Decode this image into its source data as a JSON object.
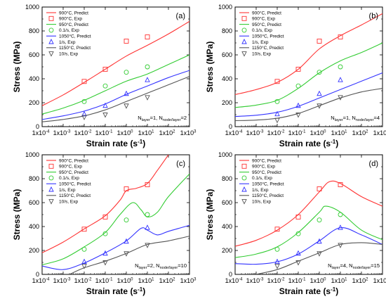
{
  "colors": {
    "900": "#ff3333",
    "950": "#33cc33",
    "1050": "#3333ff",
    "1150": "#555555"
  },
  "chart_data": [
    {
      "type": "line",
      "panel_label": "(a)",
      "annotation": {
        "N1": "layer",
        "v1": "=1, N",
        "N2": "node/layer",
        "v2": "=2"
      },
      "xlabel": "Strain rate (s",
      "xlabel_sup": "-1",
      "xlabel_end": ")",
      "ylabel": "Stress (MPa)",
      "xscale": "log",
      "xlim": [
        0.0001,
        1000
      ],
      "ylim": [
        0,
        1000
      ],
      "yticks": [
        0,
        200,
        400,
        600,
        800,
        1000
      ],
      "xtick_labels": [
        "-4",
        "-3",
        "-2",
        "-1",
        "0",
        "1",
        "2",
        "3"
      ],
      "legend": [
        "900°C, Predict",
        "900°C, Exp",
        "950°C, Predict",
        "0.1/s, Exp",
        "1050°C, Predict",
        "1/s, Exp",
        "1150°C, Predict",
        "10/s, Exp"
      ],
      "series": [
        {
          "name": "900°C, Predict",
          "color_key": "900",
          "x": [
            0.0001,
            0.001,
            0.01,
            0.1,
            1,
            10,
            100,
            1000
          ],
          "y": [
            175,
            265,
            370,
            480,
            590,
            680,
            775,
            880
          ]
        },
        {
          "name": "950°C, Predict",
          "color_key": "950",
          "x": [
            0.0001,
            0.001,
            0.01,
            0.1,
            1,
            10,
            100,
            1000
          ],
          "y": [
            105,
            155,
            220,
            300,
            380,
            440,
            520,
            600
          ]
        },
        {
          "name": "1050°C, Predict",
          "color_key": "1050",
          "x": [
            0.0001,
            0.001,
            0.01,
            0.1,
            1,
            10,
            100,
            1000
          ],
          "y": [
            60,
            90,
            130,
            190,
            270,
            340,
            410,
            470
          ]
        },
        {
          "name": "1150°C, Predict",
          "color_key": "1150",
          "x": [
            0.0001,
            0.001,
            0.01,
            0.1,
            1,
            10,
            100,
            1000
          ],
          "y": [
            40,
            60,
            90,
            140,
            210,
            280,
            350,
            420
          ]
        }
      ],
      "exp": [
        {
          "name": "900°C, Exp",
          "color_key": "900",
          "marker": "square",
          "x": [
            0.01,
            0.1,
            1,
            10
          ],
          "y": [
            378,
            480,
            715,
            750
          ]
        },
        {
          "name": "0.1/s, Exp",
          "color_key": "950",
          "marker": "circle",
          "x": [
            0.01,
            0.1,
            1,
            10
          ],
          "y": [
            210,
            340,
            455,
            500
          ]
        },
        {
          "name": "1/s, Exp",
          "color_key": "1050",
          "marker": "triangle-up",
          "x": [
            0.01,
            0.1,
            1,
            10
          ],
          "y": [
            105,
            175,
            275,
            390
          ]
        },
        {
          "name": "10/s, Exp",
          "color_key": "1150",
          "marker": "triangle-down",
          "x": [
            0.01,
            0.1,
            1,
            10
          ],
          "y": [
            80,
            100,
            175,
            245
          ]
        }
      ]
    },
    {
      "type": "line",
      "panel_label": "(b)",
      "annotation": {
        "N1": "layer",
        "v1": "=1, N",
        "N2": "node/layer",
        "v2": "=4"
      },
      "xlabel": "Strain rate (s",
      "xlabel_sup": "-1",
      "xlabel_end": ")",
      "ylabel": "Stress (MPa)",
      "xscale": "log",
      "xlim": [
        0.0001,
        1000
      ],
      "ylim": [
        0,
        1000
      ],
      "yticks": [
        0,
        200,
        400,
        600,
        800,
        1000
      ],
      "xtick_labels": [
        "-4",
        "-3",
        "-2",
        "-1",
        "0",
        "1",
        "2",
        "3"
      ],
      "legend": [
        "900°C, Predict",
        "900°C, Exp",
        "950°C, Predict",
        "0.1/s, Exp",
        "1050°C, Predict",
        "1/s, Exp",
        "1150°C, Predict",
        "10/s, Exp"
      ],
      "series": [
        {
          "name": "900°C, Predict",
          "color_key": "900",
          "x": [
            0.0001,
            0.001,
            0.01,
            0.1,
            1,
            10,
            100,
            1000
          ],
          "y": [
            268,
            310,
            370,
            480,
            650,
            760,
            850,
            945
          ]
        },
        {
          "name": "950°C, Predict",
          "color_key": "950",
          "x": [
            0.0001,
            0.001,
            0.01,
            0.1,
            1,
            10,
            100,
            1000
          ],
          "y": [
            160,
            180,
            220,
            320,
            450,
            550,
            620,
            700
          ]
        },
        {
          "name": "1050°C, Predict",
          "color_key": "1050",
          "x": [
            0.0001,
            0.001,
            0.01,
            0.1,
            1,
            10,
            100,
            1000
          ],
          "y": [
            85,
            95,
            120,
            170,
            240,
            310,
            380,
            450
          ]
        },
        {
          "name": "1150°C, Predict",
          "color_key": "1150",
          "x": [
            0.0001,
            0.001,
            0.01,
            0.1,
            1,
            10,
            100,
            1000
          ],
          "y": [
            50,
            55,
            70,
            110,
            175,
            240,
            290,
            320
          ]
        }
      ],
      "exp": [
        {
          "name": "900°C, Exp",
          "color_key": "900",
          "marker": "square",
          "x": [
            0.01,
            0.1,
            1,
            10
          ],
          "y": [
            378,
            480,
            715,
            750
          ]
        },
        {
          "name": "0.1/s, Exp",
          "color_key": "950",
          "marker": "circle",
          "x": [
            0.01,
            0.1,
            1,
            10
          ],
          "y": [
            210,
            340,
            455,
            500
          ]
        },
        {
          "name": "1/s, Exp",
          "color_key": "1050",
          "marker": "triangle-up",
          "x": [
            0.01,
            0.1,
            1,
            10
          ],
          "y": [
            105,
            175,
            275,
            390
          ]
        },
        {
          "name": "10/s, Exp",
          "color_key": "1150",
          "marker": "triangle-down",
          "x": [
            0.01,
            0.1,
            1,
            10
          ],
          "y": [
            55,
            100,
            175,
            245
          ]
        }
      ]
    },
    {
      "type": "line",
      "panel_label": "(c)",
      "annotation": {
        "N1": "layer",
        "v1": "=2, N",
        "N2": "node/layer",
        "v2": "=10"
      },
      "xlabel": "Strain rate (s",
      "xlabel_sup": "-1",
      "xlabel_end": ")",
      "ylabel": "Stress (MPa)",
      "xscale": "log",
      "xlim": [
        0.0001,
        1000
      ],
      "ylim": [
        0,
        1000
      ],
      "yticks": [
        0,
        200,
        400,
        600,
        800,
        1000
      ],
      "xtick_labels": [
        "-4",
        "-3",
        "-2",
        "-1",
        "0",
        "1",
        "2",
        "3"
      ],
      "legend": [
        "900°C, Predict",
        "900°C, Exp",
        "950°C, Predict",
        "0.1/s, Exp",
        "1050°C, Predict",
        "1/s, Exp",
        "1150°C, Predict",
        "10/s, Exp"
      ],
      "series": [
        {
          "name": "900°C, Predict",
          "color_key": "900",
          "x": [
            0.0001,
            0.001,
            0.01,
            0.1,
            0.5,
            1,
            3,
            10,
            30,
            100
          ],
          "y": [
            180,
            270,
            380,
            490,
            620,
            700,
            720,
            760,
            870,
            1000
          ]
        },
        {
          "name": "950°C, Predict",
          "color_key": "950",
          "x": [
            0.0001,
            0.001,
            0.01,
            0.1,
            0.5,
            2,
            5,
            10,
            30,
            100,
            1000
          ],
          "y": [
            80,
            130,
            230,
            350,
            500,
            600,
            540,
            480,
            520,
            650,
            840
          ]
        },
        {
          "name": "1050°C, Predict",
          "color_key": "1050",
          "x": [
            0.0001,
            0.001,
            0.01,
            0.1,
            1,
            5,
            10,
            30,
            100,
            1000
          ],
          "y": [
            70,
            40,
            95,
            180,
            280,
            385,
            370,
            330,
            360,
            410
          ]
        },
        {
          "name": "1150°C, Predict",
          "color_key": "1150",
          "x": [
            0.002,
            0.01,
            0.1,
            1,
            10,
            100,
            1000
          ],
          "y": [
            0,
            55,
            110,
            175,
            250,
            280,
            320
          ]
        }
      ],
      "exp": [
        {
          "name": "900°C, Exp",
          "color_key": "900",
          "marker": "square",
          "x": [
            0.01,
            0.1,
            1,
            10
          ],
          "y": [
            378,
            480,
            715,
            750
          ]
        },
        {
          "name": "0.1/s, Exp",
          "color_key": "950",
          "marker": "circle",
          "x": [
            0.01,
            0.1,
            1,
            10
          ],
          "y": [
            210,
            340,
            455,
            500
          ]
        },
        {
          "name": "1/s, Exp",
          "color_key": "1050",
          "marker": "triangle-up",
          "x": [
            0.01,
            0.1,
            1,
            10
          ],
          "y": [
            105,
            175,
            275,
            390
          ]
        },
        {
          "name": "10/s, Exp",
          "color_key": "1150",
          "marker": "triangle-down",
          "x": [
            0.01,
            0.1,
            1,
            10
          ],
          "y": [
            70,
            100,
            175,
            245
          ]
        }
      ]
    },
    {
      "type": "line",
      "panel_label": "(d)",
      "annotation": {
        "N1": "layer",
        "v1": "=4, N",
        "N2": "node/layer",
        "v2": "=15"
      },
      "xlabel": "Strain rate (s",
      "xlabel_sup": "-1",
      "xlabel_end": ")",
      "ylabel": "Stress (MPa)",
      "xscale": "log",
      "xlim": [
        0.0001,
        1000
      ],
      "ylim": [
        0,
        1000
      ],
      "yticks": [
        0,
        200,
        400,
        600,
        800,
        1000
      ],
      "xtick_labels": [
        "-4",
        "-3",
        "-2",
        "-1",
        "0",
        "1",
        "2",
        "3"
      ],
      "legend": [
        "900°C, Predict",
        "900°C, Exp",
        "950°C, Predict",
        "0.1/s, Exp",
        "1050°C, Predict",
        "1/s, Exp",
        "1150°C, Predict",
        "10/s, Exp"
      ],
      "series": [
        {
          "name": "900°C, Predict",
          "color_key": "900",
          "x": [
            0.0001,
            0.001,
            0.01,
            0.1,
            1,
            3,
            10,
            100,
            1000
          ],
          "y": [
            235,
            285,
            370,
            500,
            690,
            775,
            760,
            650,
            570
          ]
        },
        {
          "name": "950°C, Predict",
          "color_key": "950",
          "x": [
            0.0001,
            0.001,
            0.01,
            0.1,
            1,
            2,
            10,
            100,
            1000
          ],
          "y": [
            140,
            170,
            230,
            350,
            520,
            570,
            520,
            370,
            290
          ]
        },
        {
          "name": "1050°C, Predict",
          "color_key": "1050",
          "x": [
            0.0001,
            0.001,
            0.01,
            0.1,
            1,
            10,
            100,
            1000
          ],
          "y": [
            90,
            85,
            105,
            170,
            280,
            390,
            330,
            250
          ]
        },
        {
          "name": "1150°C, Predict",
          "color_key": "1150",
          "x": [
            0.001,
            0.01,
            0.1,
            1,
            10,
            100,
            1000
          ],
          "y": [
            0,
            40,
            110,
            180,
            250,
            265,
            250
          ]
        }
      ],
      "exp": [
        {
          "name": "900°C, Exp",
          "color_key": "900",
          "marker": "square",
          "x": [
            0.01,
            0.1,
            1,
            10
          ],
          "y": [
            378,
            480,
            715,
            750
          ]
        },
        {
          "name": "0.1/s, Exp",
          "color_key": "950",
          "marker": "circle",
          "x": [
            0.01,
            0.1,
            1,
            10
          ],
          "y": [
            210,
            340,
            455,
            500
          ]
        },
        {
          "name": "1/s, Exp",
          "color_key": "1050",
          "marker": "triangle-up",
          "x": [
            0.01,
            0.1,
            1,
            10
          ],
          "y": [
            105,
            175,
            275,
            390
          ]
        },
        {
          "name": "10/s, Exp",
          "color_key": "1150",
          "marker": "triangle-down",
          "x": [
            0.01,
            0.1,
            1,
            10
          ],
          "y": [
            70,
            100,
            175,
            245
          ]
        }
      ]
    }
  ]
}
